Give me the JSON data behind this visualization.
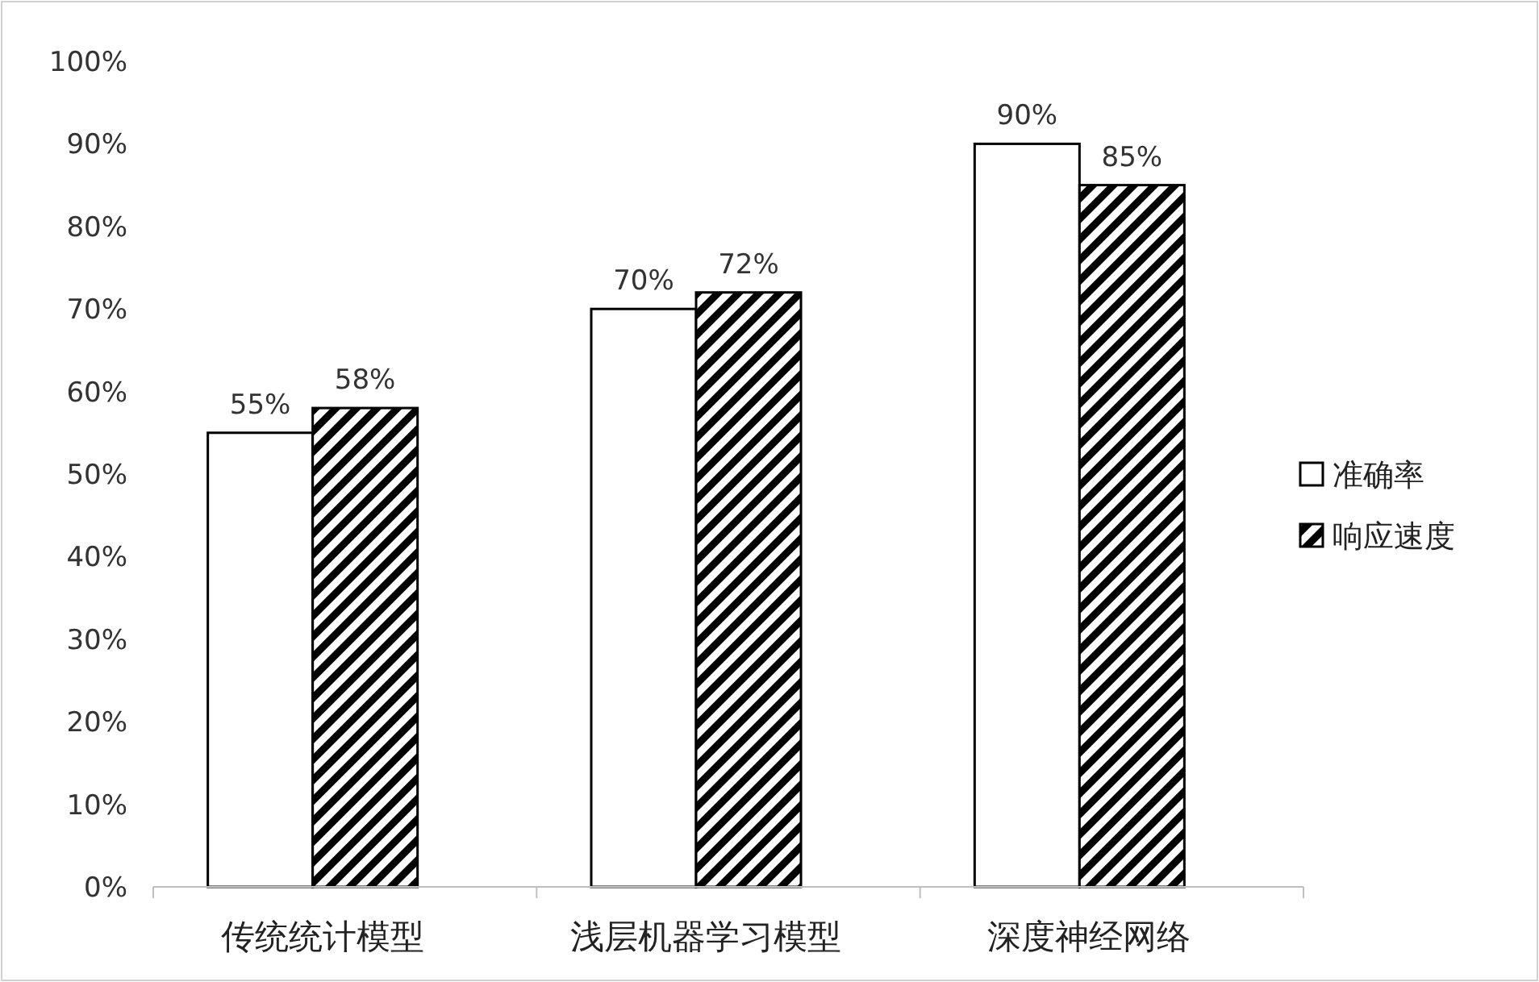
{
  "chart_data": {
    "type": "bar",
    "categories": [
      "传统统计模型",
      "浅层机器学习模型",
      "深度神经网络"
    ],
    "series": [
      {
        "name": "准确率",
        "color": "#ffffff",
        "values": [
          55,
          70,
          90
        ],
        "value_labels": [
          "55%",
          "70%",
          "90%"
        ]
      },
      {
        "name": "响应速度",
        "color": "#000000",
        "values": [
          58,
          72,
          85
        ],
        "value_labels": [
          "58%",
          "72%",
          "85%"
        ]
      }
    ],
    "ylim": [
      0,
      100
    ],
    "yticks": [
      {
        "value": 0,
        "label": "0%"
      },
      {
        "value": 10,
        "label": "10%"
      },
      {
        "value": 20,
        "label": "20%"
      },
      {
        "value": 30,
        "label": "30%"
      },
      {
        "value": 40,
        "label": "40%"
      },
      {
        "value": 50,
        "label": "50%"
      },
      {
        "value": 60,
        "label": "60%"
      },
      {
        "value": 70,
        "label": "70%"
      },
      {
        "value": 80,
        "label": "80%"
      },
      {
        "value": 90,
        "label": "90%"
      },
      {
        "value": 100,
        "label": "100%"
      }
    ],
    "grid": false,
    "legend": "right"
  }
}
